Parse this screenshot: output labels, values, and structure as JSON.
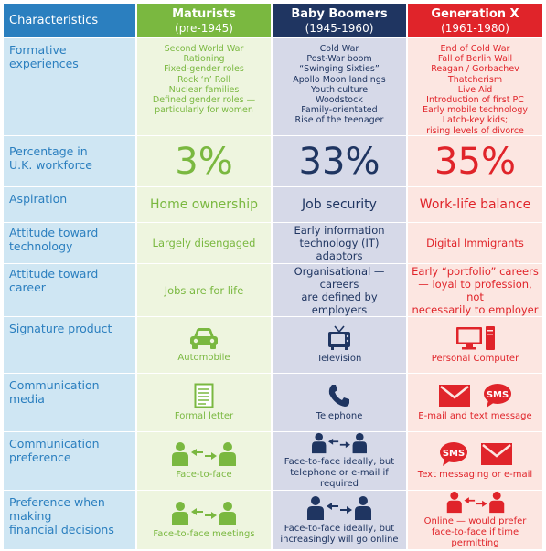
{
  "header": {
    "characteristics": "Characteristics",
    "maturists": {
      "name": "Maturists",
      "years": "(pre-1945)"
    },
    "boomers": {
      "name": "Baby Boomers",
      "years": "(1945-1960)"
    },
    "genx": {
      "name": "Generation X",
      "years": "(1961-1980)"
    }
  },
  "rows": {
    "formative": {
      "label": "Formative experiences",
      "maturists": [
        "Second World War",
        "Rationing",
        "Fixed-gender roles",
        "Rock ‘n’ Roll",
        "Nuclear families",
        "Defined gender roles —",
        "particularly for women"
      ],
      "boomers": [
        "Cold War",
        "Post-War boom",
        "“Swinging Sixties”",
        "Apollo Moon landings",
        "Youth culture",
        "Woodstock",
        "Family-orientated",
        "Rise of the teenager"
      ],
      "genx": [
        "End of Cold War",
        "Fall of Berlin Wall",
        "Reagan / Gorbachev",
        "Thatcherism",
        "Live Aid",
        "Introduction of first PC",
        "Early mobile technology",
        "Latch-key kids;",
        "rising levels of divorce"
      ]
    },
    "percentage": {
      "label_line1": "Percentage in",
      "label_line2": "U.K. workforce",
      "maturists": "3%",
      "boomers": "33%",
      "genx": "35%"
    },
    "aspiration": {
      "label": "Aspiration",
      "maturists": "Home ownership",
      "boomers": "Job security",
      "genx": "Work-life balance"
    },
    "technology": {
      "label_line1": "Attitude toward",
      "label_line2": "technology",
      "maturists": "Largely disengaged",
      "boomers_line1": "Early information",
      "boomers_line2": "technology (IT) adaptors",
      "genx": "Digital Immigrants"
    },
    "career": {
      "label_line1": "Attitude toward",
      "label_line2": "career",
      "maturists": "Jobs are for life",
      "boomers_line1": "Organisational — careers",
      "boomers_line2": "are defined by employers",
      "genx_line1": "Early “portfolio” careers",
      "genx_line2": "— loyal to profession, not",
      "genx_line3": "necessarily to employer"
    },
    "product": {
      "label": "Signature product",
      "maturists": {
        "caption": "Automobile",
        "icon": "car-icon"
      },
      "boomers": {
        "caption": "Television",
        "icon": "television-icon"
      },
      "genx": {
        "caption": "Personal Computer",
        "icon": "computer-icon"
      }
    },
    "media": {
      "label": "Communication media",
      "maturists": {
        "caption": "Formal letter",
        "icon": "letter-icon"
      },
      "boomers": {
        "caption": "Telephone",
        "icon": "telephone-icon"
      },
      "genx": {
        "caption": "E-mail and text message",
        "icon": "email-sms-icon",
        "sms": "SMS"
      }
    },
    "preference": {
      "label_line1": "Communication",
      "label_line2": "preference",
      "maturists": "Face-to-face",
      "boomers_line1": "Face-to-face ideally, but",
      "boomers_line2": "telephone or e-mail if required",
      "genx": "Text messaging or e-mail",
      "sms": "SMS"
    },
    "financial": {
      "label_line1": "Preference when making",
      "label_line2": "financial decisions",
      "maturists": "Face-to-face meetings",
      "boomers_line1": "Face-to-face ideally, but",
      "boomers_line2": "increasingly will go online",
      "genx_line1": "Online — would prefer",
      "genx_line2": "face-to-face if time permitting"
    }
  },
  "colors": {
    "blue": "#2b7fbf",
    "green": "#7ab840",
    "navy": "#1f3561",
    "red": "#e0242a"
  }
}
